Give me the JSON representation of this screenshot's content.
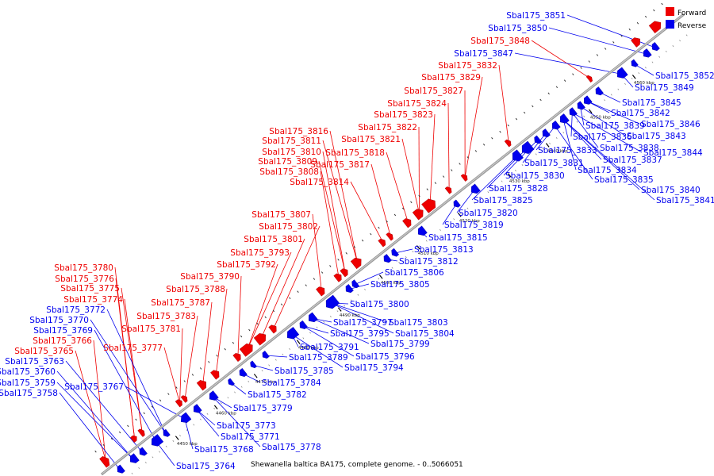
{
  "colors": {
    "forward": "#ee0000",
    "reverse": "#0000ee",
    "backbone": "#999999",
    "tick": "#000000"
  },
  "legend": {
    "forward": "Forward",
    "reverse": "Reverse"
  },
  "caption": "Shewanella baltica BA175, complete genome. - 0..5066051",
  "ticks": [
    "4450 kbp",
    "4460 kbp",
    "4470 kbp",
    "4480 kbp",
    "4490 kbp",
    "4500 kbp",
    "4510 kbp",
    "4520 kbp",
    "4530 kbp",
    "4540 kbp",
    "4550 kbp",
    "4560 kbp"
  ],
  "forward_labels": [
    "Sbal175_3848",
    "Sbal175_3832",
    "Sbal175_3829",
    "Sbal175_3827",
    "Sbal175_3824",
    "Sbal175_3823",
    "Sbal175_3822",
    "Sbal175_3816",
    "Sbal175_3821",
    "Sbal175_3811",
    "Sbal175_3818",
    "Sbal175_3810",
    "Sbal175_3809",
    "Sbal175_3817",
    "Sbal175_3808",
    "Sbal175_3814",
    "Sbal175_3807",
    "Sbal175_3802",
    "Sbal175_3801",
    "Sbal175_3793",
    "Sbal175_3792",
    "Sbal175_3780",
    "Sbal175_3790",
    "Sbal175_3776",
    "Sbal175_3788",
    "Sbal175_3775",
    "Sbal175_3774",
    "Sbal175_3787",
    "Sbal175_3783",
    "Sbal175_3781",
    "Sbal175_3766",
    "Sbal175_3777",
    "Sbal175_3765"
  ],
  "reverse_labels": [
    "Sbal175_3851",
    "Sbal175_3850",
    "Sbal175_3847",
    "Sbal175_3852",
    "Sbal175_3849",
    "Sbal175_3845",
    "Sbal175_3842",
    "Sbal175_3846",
    "Sbal175_3839",
    "Sbal175_3843",
    "Sbal175_3836",
    "Sbal175_3838",
    "Sbal175_3844",
    "Sbal175_3833",
    "Sbal175_3837",
    "Sbal175_3831",
    "Sbal175_3834",
    "Sbal175_3830",
    "Sbal175_3835",
    "Sbal175_3828",
    "Sbal175_3840",
    "Sbal175_3825",
    "Sbal175_3841",
    "Sbal175_3820",
    "Sbal175_3819",
    "Sbal175_3815",
    "Sbal175_3813",
    "Sbal175_3812",
    "Sbal175_3806",
    "Sbal175_3805",
    "Sbal175_3800",
    "Sbal175_3797",
    "Sbal175_3803",
    "Sbal175_3795",
    "Sbal175_3804",
    "Sbal175_3799",
    "Sbal175_3791",
    "Sbal175_3796",
    "Sbal175_3789",
    "Sbal175_3794",
    "Sbal175_3785",
    "Sbal175_3784",
    "Sbal175_3782",
    "Sbal175_3779",
    "Sbal175_3772",
    "Sbal175_3770",
    "Sbal175_3769",
    "Sbal175_3763",
    "Sbal175_3767",
    "Sbal175_3760",
    "Sbal175_3759",
    "Sbal175_3758",
    "Sbal175_3773",
    "Sbal175_3771",
    "Sbal175_3778",
    "Sbal175_3768",
    "Sbal175_3764"
  ]
}
